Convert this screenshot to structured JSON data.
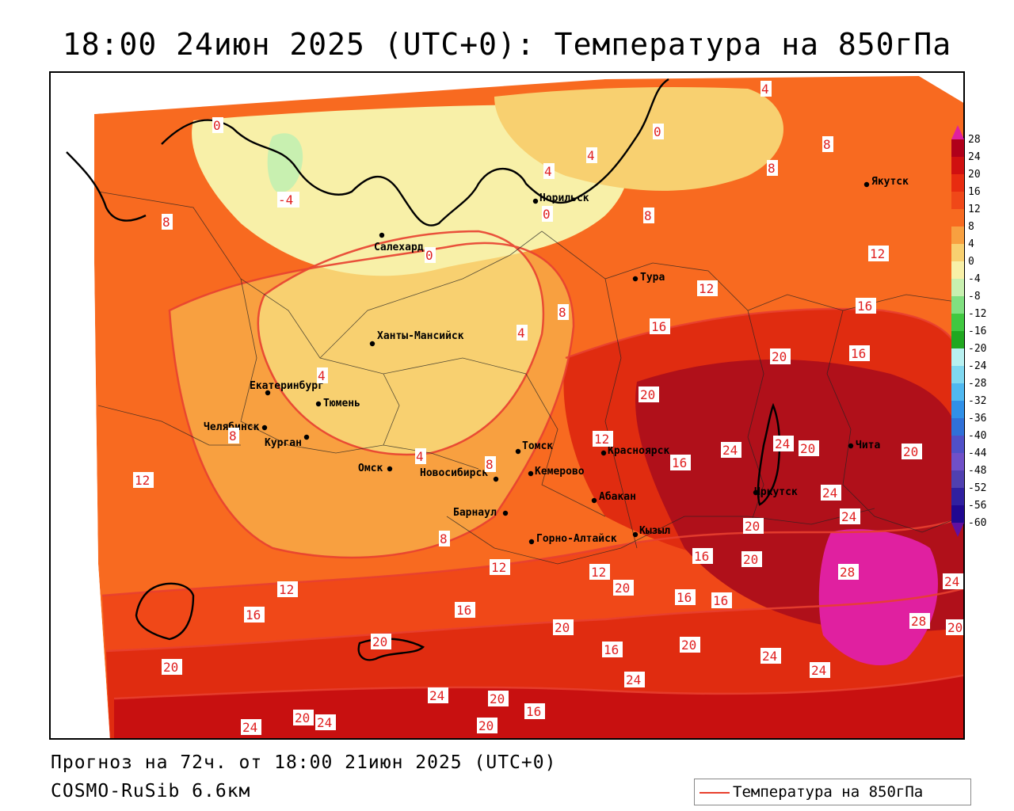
{
  "title": "18:00 24июн 2025 (UTC+0): Температура на 850гПа",
  "footer": {
    "forecast": "Прогноз на 72ч. от 18:00 21июн 2025 (UTC+0)",
    "model": "COSMO-RuSib 6.6км"
  },
  "legend": {
    "label": "Температура на 850гПа",
    "line_color": "#e8402e"
  },
  "colorbar": {
    "levels": [
      "28",
      "24",
      "20",
      "16",
      "12",
      "8",
      "4",
      "0",
      "-4",
      "-8",
      "-12",
      "-16",
      "-20",
      "-24",
      "-28",
      "-32",
      "-36",
      "-40",
      "-44",
      "-48",
      "-52",
      "-56",
      "-60"
    ],
    "colors": [
      "#b0001a",
      "#d01010",
      "#e82c10",
      "#f04818",
      "#f86a20",
      "#f8a040",
      "#f8d070",
      "#f8f0a8",
      "#c8f0b0",
      "#80e080",
      "#40c840",
      "#20a820",
      "#b8f0f0",
      "#80d8f0",
      "#50b8f0",
      "#3090e8",
      "#3070d8",
      "#5050c8",
      "#7050c8",
      "#5040b0",
      "#3020a0",
      "#200890"
    ],
    "top_arrow_color": "#e020a0",
    "bottom_arrow_color": "#6010a0"
  },
  "cities": [
    {
      "name": "Норильск"
    },
    {
      "name": "Якутск"
    },
    {
      "name": "Салехард"
    },
    {
      "name": "Тура"
    },
    {
      "name": "Ханты-Мансийск"
    },
    {
      "name": "Екатеринбург"
    },
    {
      "name": "Тюмень"
    },
    {
      "name": "Челябинск"
    },
    {
      "name": "Курган"
    },
    {
      "name": "Омск"
    },
    {
      "name": "Новосибирск"
    },
    {
      "name": "Томск"
    },
    {
      "name": "Кемерово"
    },
    {
      "name": "Красноярск"
    },
    {
      "name": "Абакан"
    },
    {
      "name": "Барнаул"
    },
    {
      "name": "Горно-Алтайск"
    },
    {
      "name": "Кызыл"
    },
    {
      "name": "Иркутск"
    },
    {
      "name": "Чита"
    }
  ],
  "isolines": [
    "0",
    "4",
    "8",
    "12",
    "16",
    "20",
    "24",
    "28",
    "-4"
  ]
}
